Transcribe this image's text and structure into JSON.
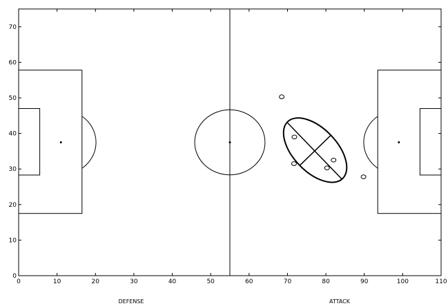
{
  "chart_data": {
    "type": "scatter",
    "title": "",
    "xlabel_left": "DEFENSE",
    "xlabel_right": "ATTACK",
    "xlim": [
      0,
      110
    ],
    "ylim": [
      0,
      75
    ],
    "xticks": [
      0,
      10,
      20,
      30,
      40,
      50,
      60,
      70,
      80,
      90,
      100,
      110
    ],
    "yticks": [
      0,
      10,
      20,
      30,
      40,
      50,
      60,
      70
    ],
    "grid": false,
    "legend": "none",
    "series": [
      {
        "type": "scatter",
        "marker": "open-circle",
        "points": [
          {
            "x": 68.5,
            "y": 50.3
          },
          {
            "x": 71.8,
            "y": 39.0
          },
          {
            "x": 71.7,
            "y": 31.5
          },
          {
            "x": 80.3,
            "y": 30.3
          },
          {
            "x": 82.0,
            "y": 32.5
          },
          {
            "x": 89.8,
            "y": 27.8
          }
        ]
      }
    ],
    "ellipse": {
      "center": {
        "x": 77.2,
        "y": 35.3
      },
      "major_end_a": {
        "x": 70.0,
        "y": 43.0
      },
      "major_end_b": {
        "x": 84.3,
        "y": 27.0
      },
      "minor_end_a": {
        "x": 73.2,
        "y": 31.0
      },
      "minor_end_b": {
        "x": 81.3,
        "y": 39.5
      }
    },
    "pitch": {
      "length": 110,
      "halfway_x": 55,
      "center_spot": {
        "x": 55,
        "y": 37.5
      },
      "center_circle_radius": 9.15,
      "penalty_areas": [
        {
          "x0": 0,
          "x1": 16.5,
          "y0": 17.5,
          "y1": 57.8
        },
        {
          "x0": 93.5,
          "x1": 110,
          "y0": 17.5,
          "y1": 57.8
        }
      ],
      "goal_areas": [
        {
          "x0": 0,
          "x1": 5.5,
          "y0": 28.3,
          "y1": 47.0
        },
        {
          "x0": 104.5,
          "x1": 110,
          "y0": 28.3,
          "y1": 47.0
        }
      ],
      "penalty_spots": [
        {
          "x": 11,
          "y": 37.5
        },
        {
          "x": 99,
          "y": 37.5
        }
      ],
      "penalty_arc_radius": 9.15
    }
  }
}
